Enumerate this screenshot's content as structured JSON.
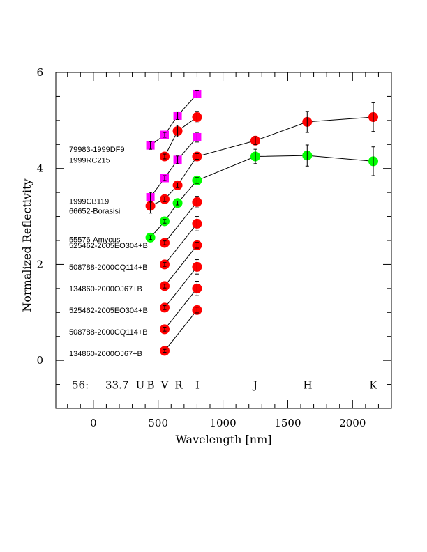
{
  "chart_data": {
    "type": "scatter",
    "xlabel": "Wavelength [nm]",
    "ylabel": "Normalized Reflectivity",
    "xlim": [
      -290,
      2300
    ],
    "ylim": [
      -1,
      6
    ],
    "x_ticks": [
      "0",
      "500",
      "1000",
      "1500",
      "2000"
    ],
    "y_ticks": [
      "0",
      "2",
      "4",
      "6"
    ],
    "grid": false,
    "annotation": {
      "id": "56:",
      "value": "33.7",
      "bands": [
        {
          "label": "U",
          "x": 365
        },
        {
          "label": "B",
          "x": 440
        },
        {
          "label": "V",
          "x": 550
        },
        {
          "label": "R",
          "x": 650
        },
        {
          "label": "I",
          "x": 800
        },
        {
          "label": "J",
          "x": 1250
        },
        {
          "label": "H",
          "x": 1650
        },
        {
          "label": "K",
          "x": 2160
        }
      ]
    },
    "series": [
      {
        "name": "134860-2000OJ67+B",
        "color": "#ff0000",
        "marker": "circle",
        "points": [
          [
            550,
            0.2,
            0.03
          ],
          [
            800,
            1.05,
            0.06
          ]
        ]
      },
      {
        "name": "508788-2000CQ114+B",
        "color": "#ff0000",
        "marker": "circle",
        "points": [
          [
            550,
            0.65,
            0.04
          ],
          [
            800,
            1.5,
            0.15
          ]
        ]
      },
      {
        "name": "525462-2005EO304+B",
        "color": "#ff0000",
        "marker": "circle",
        "points": [
          [
            550,
            1.1,
            0.04
          ],
          [
            800,
            1.95,
            0.15
          ]
        ]
      },
      {
        "name": "134860-2000OJ67+B",
        "color": "#ff0000",
        "marker": "circle",
        "points": [
          [
            550,
            1.55,
            0.04
          ],
          [
            800,
            2.4,
            0.06
          ]
        ]
      },
      {
        "name": "508788-2000CQ114+B",
        "color": "#ff0000",
        "marker": "circle",
        "points": [
          [
            550,
            2.0,
            0.04
          ],
          [
            800,
            2.85,
            0.15
          ]
        ]
      },
      {
        "name": "525462-2005EO304+B",
        "color": "#ff0000",
        "marker": "circle",
        "points": [
          [
            550,
            2.45,
            0.04
          ],
          [
            800,
            3.3,
            0.12
          ]
        ]
      },
      {
        "name": "55576-Amycus",
        "color": "#00ff00",
        "marker": "circle",
        "points": [
          [
            440,
            2.56,
            0.04
          ],
          [
            550,
            2.9,
            0.04
          ],
          [
            650,
            3.28,
            0.04
          ],
          [
            800,
            3.75,
            0.06
          ],
          [
            1250,
            4.25,
            0.15
          ],
          [
            1650,
            4.27,
            0.22
          ],
          [
            2160,
            4.15,
            0.3
          ]
        ]
      },
      {
        "name": "66652-Borasisi",
        "color": "#ff0000",
        "marker": "circle",
        "points": [
          [
            440,
            3.22,
            0.15
          ],
          [
            550,
            3.36,
            0.05
          ],
          [
            650,
            3.65,
            0.05
          ],
          [
            800,
            4.25,
            0.06
          ],
          [
            1250,
            4.58,
            0.08
          ],
          [
            1650,
            4.97,
            0.22
          ],
          [
            2160,
            5.07,
            0.3
          ]
        ]
      },
      {
        "name": "1999CB119",
        "color": "#ff00ff",
        "marker": "square",
        "points": [
          [
            440,
            3.4,
            0.1
          ],
          [
            550,
            3.8,
            0.05
          ],
          [
            650,
            4.18,
            0.08
          ],
          [
            800,
            4.65,
            0.1
          ]
        ]
      },
      {
        "name": "1999RC215",
        "color": "#ff0000",
        "marker": "circle",
        "points": [
          [
            550,
            4.25,
            0.05
          ],
          [
            650,
            4.78,
            0.12
          ],
          [
            800,
            5.07,
            0.12
          ]
        ]
      },
      {
        "name": "79983-1999DF9",
        "color": "#ff00ff",
        "marker": "square",
        "points": [
          [
            440,
            4.48,
            0.08
          ],
          [
            550,
            4.7,
            0.05
          ],
          [
            650,
            5.1,
            0.08
          ],
          [
            800,
            5.55,
            0.08
          ]
        ]
      }
    ],
    "labels": [
      {
        "text": "134860-2000OJ67+B",
        "y": 0.15
      },
      {
        "text": "508788-2000CQ114+B",
        "y": 0.6
      },
      {
        "text": "525462-2005EO304+B",
        "y": 1.05
      },
      {
        "text": "134860-2000OJ67+B",
        "y": 1.5
      },
      {
        "text": "508788-2000CQ114+B",
        "y": 1.95
      },
      {
        "text": "525462-2005EO304+B",
        "y": 2.4
      },
      {
        "text": "55576-Amycus",
        "y": 2.52
      },
      {
        "text": "66652-Borasisi",
        "y": 3.12
      },
      {
        "text": "1999CB119",
        "y": 3.32
      },
      {
        "text": "1999RC215",
        "y": 4.18
      },
      {
        "text": "79983-1999DF9",
        "y": 4.4
      }
    ]
  }
}
